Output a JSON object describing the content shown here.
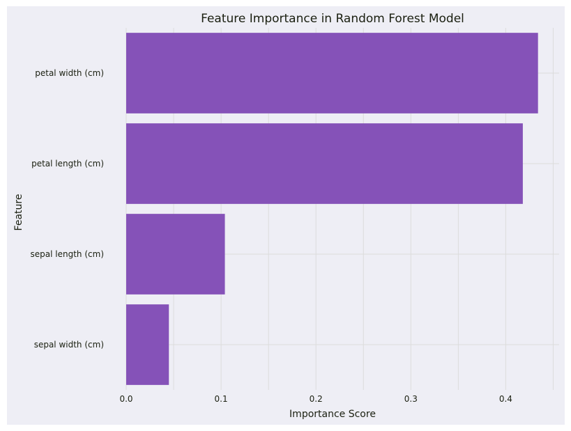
{
  "chart_data": {
    "type": "bar",
    "orientation": "horizontal",
    "title": "Feature Importance in Random Forest Model",
    "xlabel": "Importance Score",
    "ylabel": "Feature",
    "categories": [
      "petal width (cm)",
      "petal length (cm)",
      "sepal length (cm)",
      "sepal width (cm)"
    ],
    "values": [
      0.434,
      0.418,
      0.104,
      0.045
    ],
    "xlim": [
      0,
      0.455
    ],
    "xticks": [
      0.0,
      0.1,
      0.2,
      0.3,
      0.4
    ],
    "xtick_labels": [
      "0.0",
      "0.1",
      "0.2",
      "0.3",
      "0.4"
    ],
    "grid": true,
    "colors": {
      "bar": "#8552b8",
      "background": "#eeeef5",
      "grid": "#dcdcdc"
    }
  }
}
